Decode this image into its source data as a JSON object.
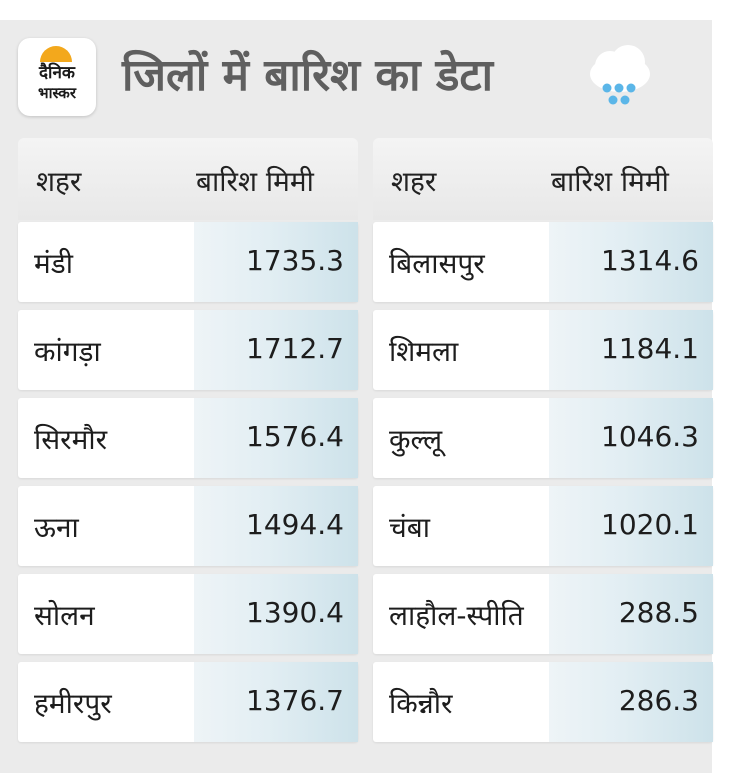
{
  "header": {
    "logo_line1": "दैनिक",
    "logo_line2": "भास्कर",
    "title": "जिलों में बारिश का डेटा",
    "icon": "rain-cloud-icon"
  },
  "colors": {
    "background": "#ebebeb",
    "title": "#5f5f5f",
    "logo_accent": "#f3a81c",
    "rain_drops": "#5bb6e8",
    "value_cell": "#cde2ea"
  },
  "tables": [
    {
      "header_city": "शहर",
      "header_rain": "बारिश मिमी",
      "rows": [
        {
          "city": "मंडी",
          "value": "1735.3"
        },
        {
          "city": "कांगड़ा",
          "value": "1712.7"
        },
        {
          "city": "सिरमौर",
          "value": "1576.4"
        },
        {
          "city": "ऊना",
          "value": "1494.4"
        },
        {
          "city": "सोलन",
          "value": "1390.4"
        },
        {
          "city": "हमीरपुर",
          "value": "1376.7"
        }
      ]
    },
    {
      "header_city": "शहर",
      "header_rain": "बारिश मिमी",
      "rows": [
        {
          "city": "बिलासपुर",
          "value": "1314.6"
        },
        {
          "city": "शिमला",
          "value": "1184.1"
        },
        {
          "city": "कुल्लू",
          "value": "1046.3"
        },
        {
          "city": "चंबा",
          "value": "1020.1"
        },
        {
          "city": "लाहौल-स्पीति",
          "value": "288.5"
        },
        {
          "city": "किन्नौर",
          "value": "286.3"
        }
      ]
    }
  ]
}
